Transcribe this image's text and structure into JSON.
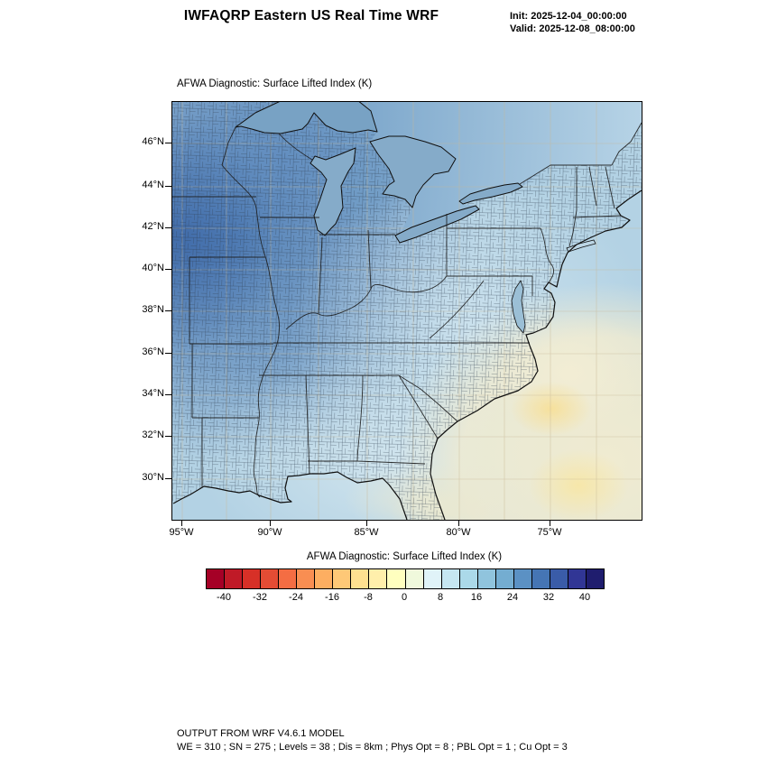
{
  "header": {
    "title": "IWFAQRP Eastern US Real Time WRF",
    "init_label": "Init: 2025-12-04_00:00:00",
    "valid_label": "Valid: 2025-12-08_08:00:00"
  },
  "map": {
    "panel_title": "AFWA Diagnostic: Surface Lifted Index   (K)",
    "lat_ticks": [
      "46°N",
      "44°N",
      "42°N",
      "40°N",
      "38°N",
      "36°N",
      "34°N",
      "32°N",
      "30°N"
    ],
    "lon_ticks": [
      "95°W",
      "90°W",
      "85°W",
      "80°W",
      "75°W"
    ]
  },
  "colorbar": {
    "title": "AFWA Diagnostic: Surface Lifted Index  (K)",
    "tick_labels": [
      "-40",
      "-32",
      "-24",
      "-16",
      "-8",
      "0",
      "8",
      "16",
      "24",
      "32",
      "40"
    ],
    "colors": [
      "#a50026",
      "#c01a27",
      "#d73027",
      "#e44c34",
      "#f46d43",
      "#f98e52",
      "#fdae61",
      "#fec877",
      "#fee090",
      "#ffefab",
      "#ffffbf",
      "#f0f9dc",
      "#e0f3f8",
      "#c6e6f1",
      "#abd9e9",
      "#90c4dd",
      "#74add1",
      "#5b91c4",
      "#4575b4",
      "#3a5ca8",
      "#313695",
      "#1f1d6e"
    ]
  },
  "footer": {
    "line1": "OUTPUT FROM WRF V4.6.1 MODEL",
    "line2": "WE = 310 ; SN = 275 ; Levels = 38 ; Dis = 8km ; Phys Opt = 8 ; PBL Opt = 1 ; Cu Opt = 3"
  }
}
